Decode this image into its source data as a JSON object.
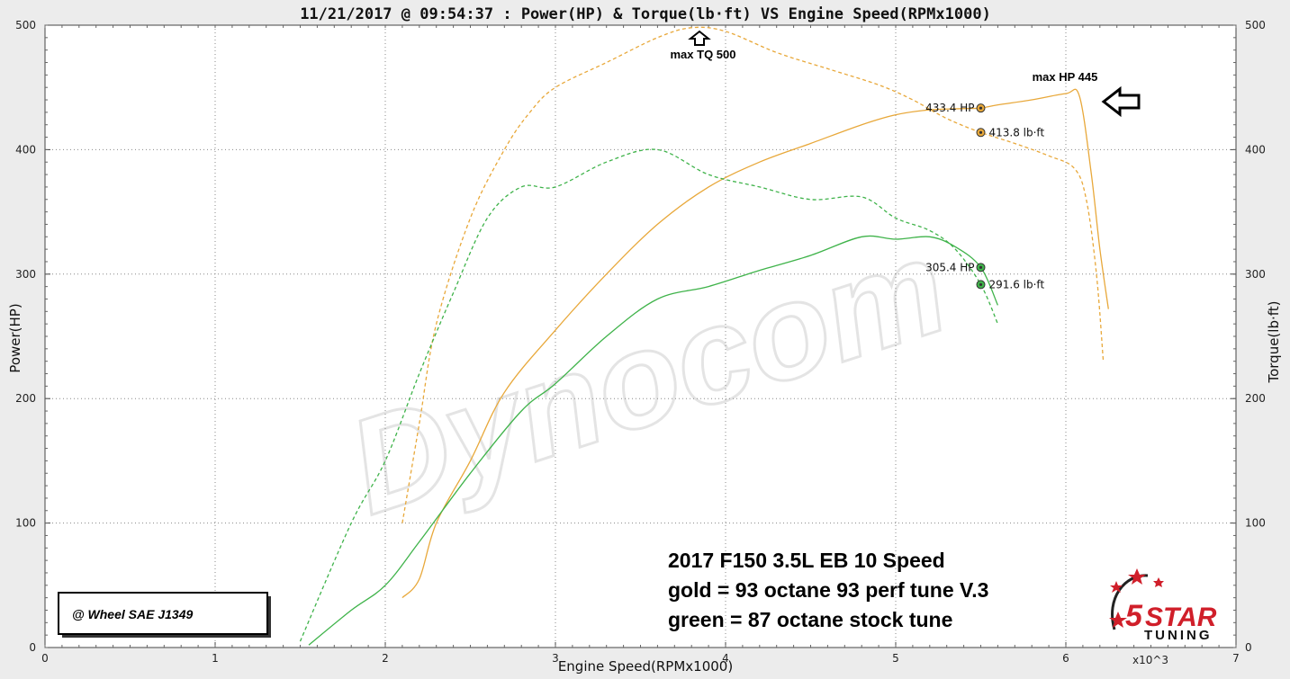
{
  "chart_data": {
    "type": "line",
    "title": "11/21/2017 @ 09:54:37 : Power(HP) & Torque(lb·ft) VS Engine Speed(RPMx1000)",
    "xlabel": "Engine Speed(RPMx1000)",
    "ylabel_left": "Power(HP)",
    "ylabel_right": "Torque(lb·ft)",
    "x_multiplier_label": "x10^3",
    "xlim": [
      0,
      7
    ],
    "ylim": [
      0,
      500
    ],
    "xticks": [
      "0",
      "1",
      "2",
      "3",
      "4",
      "5",
      "6",
      "7"
    ],
    "yticks_left": [
      "0",
      "100",
      "200",
      "300",
      "400",
      "500"
    ],
    "yticks_right": [
      "0",
      "100",
      "200",
      "300",
      "400",
      "500"
    ],
    "grid": true,
    "series": [
      {
        "color": "#e8a83a",
        "dash": false,
        "x": [
          2.1,
          2.2,
          2.3,
          2.5,
          2.7,
          3.0,
          3.3,
          3.6,
          3.9,
          4.2,
          4.5,
          4.8,
          5.0,
          5.2,
          5.4,
          5.5,
          5.6,
          5.8,
          6.0,
          6.08,
          6.15,
          6.2,
          6.25
        ],
        "y": [
          40,
          55,
          100,
          150,
          205,
          255,
          300,
          340,
          370,
          390,
          405,
          420,
          428,
          432,
          433,
          433.4,
          436,
          440,
          445,
          443,
          380,
          320,
          272
        ]
      },
      {
        "color": "#e8a83a",
        "dash": true,
        "x": [
          2.1,
          2.2,
          2.3,
          2.5,
          2.7,
          2.85,
          3.0,
          3.3,
          3.6,
          3.8,
          4.0,
          4.3,
          4.6,
          4.9,
          5.1,
          5.3,
          5.5,
          5.7,
          5.9,
          6.05,
          6.12,
          6.18,
          6.22
        ],
        "y": [
          100,
          180,
          260,
          345,
          400,
          430,
          450,
          470,
          490,
          498,
          495,
          478,
          465,
          452,
          440,
          425,
          413.8,
          405,
          395,
          385,
          360,
          300,
          230
        ]
      },
      {
        "color": "#3fb34a",
        "dash": false,
        "x": [
          1.55,
          1.8,
          2.0,
          2.2,
          2.5,
          2.8,
          3.0,
          3.3,
          3.6,
          3.9,
          4.2,
          4.5,
          4.8,
          5.0,
          5.2,
          5.35,
          5.5,
          5.6
        ],
        "y": [
          2,
          30,
          50,
          85,
          140,
          190,
          212,
          250,
          280,
          290,
          303,
          315,
          330,
          328,
          330,
          322,
          305.4,
          275
        ]
      },
      {
        "color": "#3fb34a",
        "dash": true,
        "x": [
          1.5,
          1.8,
          2.0,
          2.2,
          2.4,
          2.6,
          2.8,
          3.0,
          3.3,
          3.6,
          3.9,
          4.2,
          4.5,
          4.8,
          5.0,
          5.2,
          5.35,
          5.5,
          5.6
        ],
        "y": [
          5,
          100,
          150,
          220,
          285,
          345,
          370,
          370,
          390,
          400,
          380,
          370,
          360,
          362,
          345,
          335,
          320,
          291.6,
          260
        ]
      }
    ],
    "points": [
      {
        "label": "433.4 HP",
        "x": 5.5,
        "y": 433.4,
        "color": "#e8a83a",
        "side": "left"
      },
      {
        "label": "413.8 lb·ft",
        "x": 5.5,
        "y": 413.8,
        "color": "#e8a83a",
        "side": "right"
      },
      {
        "label": "305.4 HP",
        "x": 5.5,
        "y": 305.4,
        "color": "#3fb34a",
        "side": "left"
      },
      {
        "label": "291.6 lb·ft",
        "x": 5.5,
        "y": 291.6,
        "color": "#3fb34a",
        "side": "right"
      }
    ],
    "annotations": {
      "max_tq": "max TQ 500",
      "max_hp": "max HP 445"
    }
  },
  "notes": {
    "line1": "2017 F150 3.5L EB 10 Speed",
    "line2": "gold = 93 octane 93 perf tune V.3",
    "line3": "green = 87 octane stock tune"
  },
  "badge": "@ Wheel SAE J1349",
  "watermark": "Dynocom",
  "logo": {
    "number": "5",
    "word": "STAR",
    "sub": "TUNING"
  }
}
